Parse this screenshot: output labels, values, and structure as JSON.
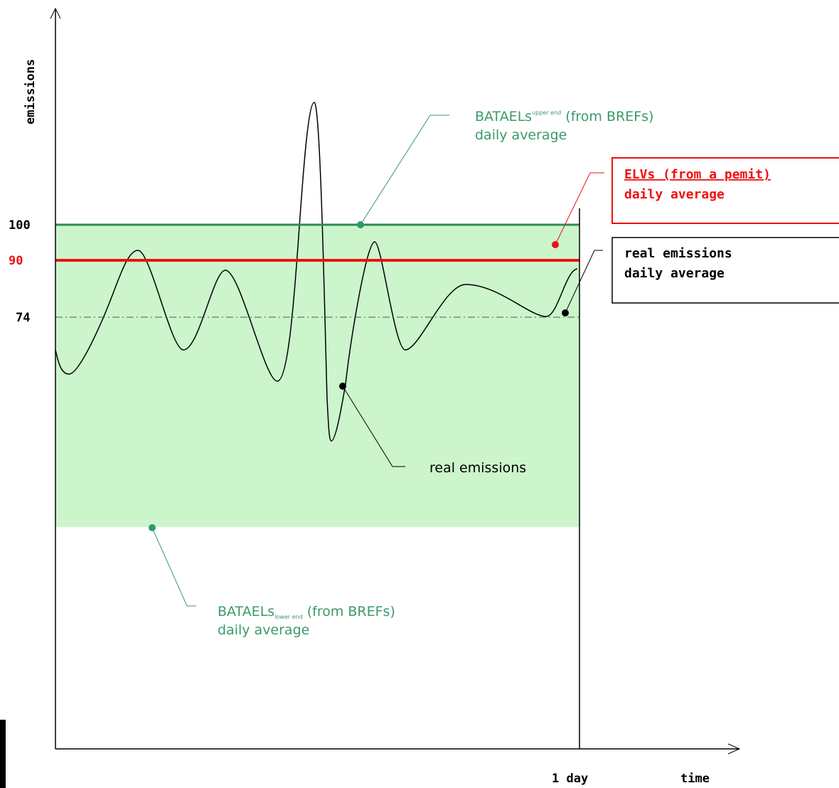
{
  "chart_data": {
    "type": "line",
    "ylabel": "emissions",
    "xlabel": "time",
    "x_tick_label": "1 day",
    "y_ticks": [
      {
        "value": 100,
        "label": "100",
        "color": "#000000"
      },
      {
        "value": 90,
        "label": "90",
        "color": "#ee1111"
      },
      {
        "value": 74,
        "label": "74",
        "color": "#000000"
      }
    ],
    "band": {
      "low": 0,
      "high": 100,
      "color": "#ccf5cc"
    },
    "lines": {
      "upper_bat": {
        "value": 100,
        "color": "#2e8b57"
      },
      "elv": {
        "value": 90,
        "color": "#ee1111"
      },
      "daily_average": {
        "value": 74,
        "color": "#555555"
      }
    },
    "annotations": {
      "bat_upper": {
        "main": "BATAELs",
        "sub": "upper end",
        "rest": " (from BREFs)",
        "line2": "daily average"
      },
      "elv": {
        "line1": "ELVs (from a pemit)",
        "line2": "daily average"
      },
      "real_avg": {
        "line1": "real emissions",
        "line2": "daily average"
      },
      "real": {
        "line1": "real emissions"
      },
      "bat_lower": {
        "main": "BATAELs",
        "sub": "lower end",
        "rest": " (from BREFs)",
        "line2": "daily average"
      }
    },
    "colors": {
      "green_text": "#3a9a6a",
      "red": "#ee1111",
      "dot_green": "#2e9a66"
    }
  }
}
